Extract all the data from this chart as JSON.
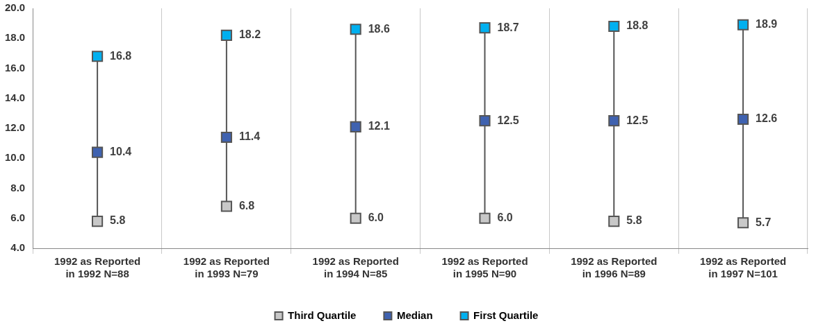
{
  "chart_data": {
    "type": "scatter",
    "categories": [
      "1992 as Reported in 1992 N=88",
      "1992 as Reported in 1993 N=79",
      "1992 as Reported in 1994 N=85",
      "1992 as Reported in 1995 N=90",
      "1992 as Reported in 1996 N=89",
      "1992 as Reported in 1997 N=101"
    ],
    "series": [
      {
        "name": "Third Quartile",
        "color": "#c8c8c8",
        "values": [
          5.8,
          6.8,
          6.0,
          6.0,
          5.8,
          5.7
        ],
        "value_labels": [
          "5.8",
          "6.8",
          "6.0",
          "6.0",
          "5.8",
          "5.7"
        ]
      },
      {
        "name": "Median",
        "color": "#3f62b0",
        "values": [
          10.4,
          11.4,
          12.1,
          12.5,
          12.5,
          12.6
        ],
        "value_labels": [
          "10.4",
          "11.4",
          "12.1",
          "12.5",
          "12.5",
          "12.6"
        ]
      },
      {
        "name": "First Quartile",
        "color": "#00b0f0",
        "values": [
          16.8,
          18.2,
          18.6,
          18.7,
          18.8,
          18.9
        ],
        "value_labels": [
          "16.8",
          "18.2",
          "18.6",
          "18.7",
          "18.8",
          "18.9"
        ]
      }
    ],
    "ylim": [
      4,
      20
    ],
    "yticks": [
      {
        "value": 4,
        "label": "4.0"
      },
      {
        "value": 6,
        "label": "6.0"
      },
      {
        "value": 8,
        "label": "8.0"
      },
      {
        "value": 10,
        "label": "10.0"
      },
      {
        "value": 12,
        "label": "12.0"
      },
      {
        "value": 14,
        "label": "14.0"
      },
      {
        "value": 16,
        "label": "16.0"
      },
      {
        "value": 18,
        "label": "18.0"
      },
      {
        "value": 20,
        "label": "20.0"
      }
    ],
    "grid": "x",
    "legend": "bottom",
    "marker": "square"
  }
}
